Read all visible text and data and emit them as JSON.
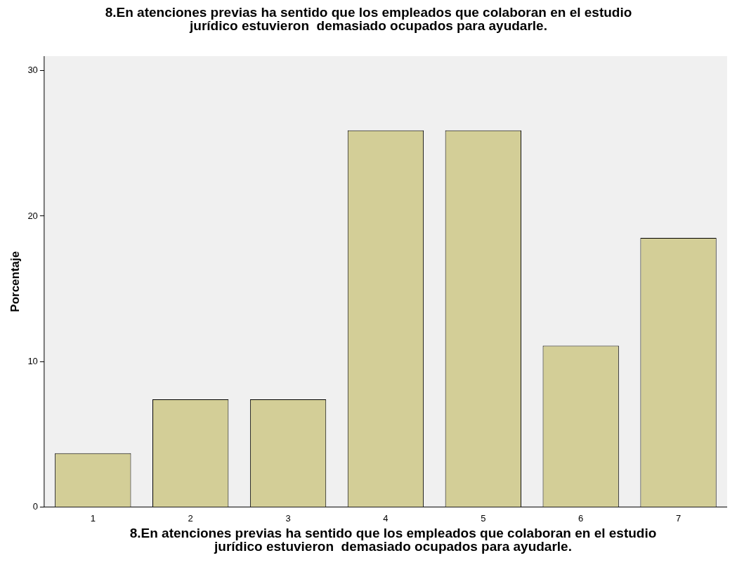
{
  "chart_data": {
    "type": "bar",
    "title": "8.En atenciones previas ha sentido que los empleados que colaboran en el estudio jurídico estuvieron  demasiado ocupados para ayudarle.",
    "xlabel": "8.En atenciones previas ha sentido que los empleados que colaboran en el estudio jurídico estuvieron  demasiado ocupados para ayudarle.",
    "ylabel": "Porcentaje",
    "categories": [
      "1",
      "2",
      "3",
      "4",
      "5",
      "6",
      "7"
    ],
    "values": [
      3.7,
      7.4,
      7.4,
      25.9,
      25.9,
      11.1,
      18.5
    ],
    "color": "#d3ce97",
    "ylim": [
      0,
      31
    ],
    "yticks": [
      0,
      10,
      20,
      30
    ],
    "grid": false,
    "legend": false
  }
}
